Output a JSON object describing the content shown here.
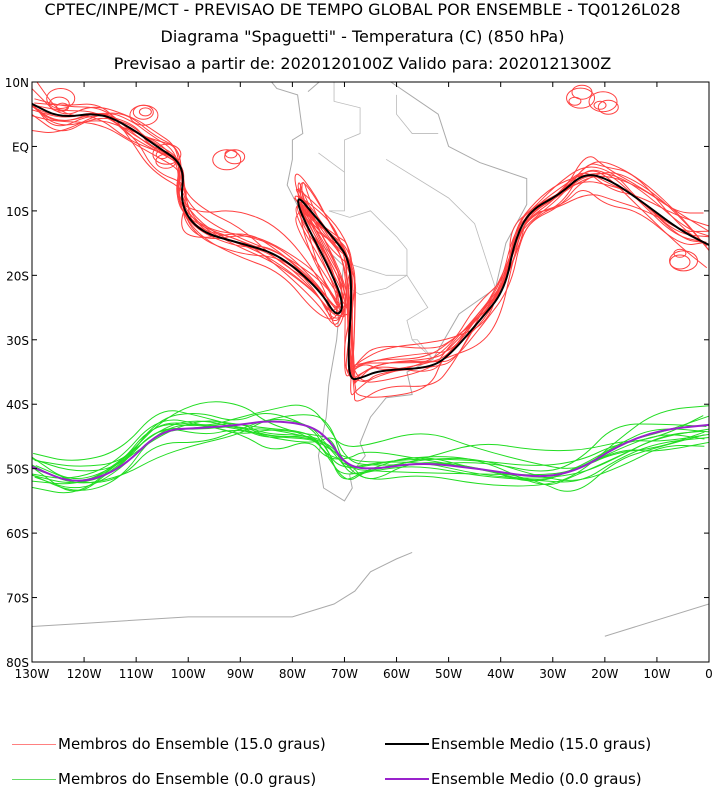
{
  "title": {
    "line1": "CPTEC/INPE/MCT - PREVISAO DE TEMPO GLOBAL POR ENSEMBLE - TQ0126L028",
    "line2": "Diagrama \"Spaguetti\" - Temperatura (C) (850 hPa)",
    "line3": "Previsao a partir de: 2020120100Z  Valido para: 2020121300Z"
  },
  "legend": [
    {
      "label": "Membros do Ensemble (15.0 graus)",
      "color": "#ff4040"
    },
    {
      "label": "Ensemble Medio (15.0 graus)",
      "color": "#000000"
    },
    {
      "label": "Membros do Ensemble (0.0 graus)",
      "color": "#22dd22"
    },
    {
      "label": "Ensemble Medio (0.0 graus)",
      "color": "#9922cc"
    }
  ],
  "chart_data": {
    "type": "line",
    "title": "Diagrama \"Spaguetti\" - Temperatura (C) (850 hPa)",
    "xlim": [
      -130,
      0
    ],
    "ylim": [
      -80,
      10
    ],
    "x_ticks": [
      "130W",
      "120W",
      "110W",
      "100W",
      "90W",
      "80W",
      "70W",
      "60W",
      "50W",
      "40W",
      "30W",
      "20W",
      "10W",
      "0"
    ],
    "y_ticks": [
      "10N",
      "EQ",
      "10S",
      "20S",
      "30S",
      "40S",
      "50S",
      "60S",
      "70S",
      "80S"
    ],
    "series": [
      {
        "name": "Ensemble Medio (15.0 graus)",
        "color": "#000000",
        "points": [
          [
            -130,
            6.6
          ],
          [
            -124.6,
            4.4
          ],
          [
            -117,
            5.3
          ],
          [
            -111,
            2.9
          ],
          [
            -106.4,
            0.2
          ],
          [
            -100.6,
            -2.9
          ],
          [
            -101.6,
            -9.1
          ],
          [
            -97.8,
            -13.3
          ],
          [
            -90,
            -15
          ],
          [
            -82.4,
            -16.8
          ],
          [
            -74.7,
            -22.3
          ],
          [
            -71.5,
            -26.6
          ],
          [
            -70,
            -24.6
          ],
          [
            -72.8,
            -19
          ],
          [
            -78.6,
            -10.2
          ],
          [
            -79.1,
            -7.5
          ],
          [
            -76,
            -10.5
          ],
          [
            -71.8,
            -14.5
          ],
          [
            -69,
            -17.6
          ],
          [
            -68.6,
            -23.8
          ],
          [
            -69.3,
            -31.6
          ],
          [
            -69,
            -36.2
          ],
          [
            -67,
            -36
          ],
          [
            -63.2,
            -34.7
          ],
          [
            -53.6,
            -34.4
          ],
          [
            -49.8,
            -32.4
          ],
          [
            -44,
            -27
          ],
          [
            -39.2,
            -22.3
          ],
          [
            -37.3,
            -14.5
          ],
          [
            -34.4,
            -9.9
          ],
          [
            -28.7,
            -7.5
          ],
          [
            -23.9,
            -4
          ],
          [
            -19,
            -5.2
          ],
          [
            -13.3,
            -8.3
          ],
          [
            -5.6,
            -13
          ],
          [
            0,
            -15.3
          ]
        ]
      },
      {
        "name": "Ensemble Medio (0.0 graus)",
        "color": "#9922cc",
        "points": [
          [
            -130,
            -49.7
          ],
          [
            -121.7,
            -52.5
          ],
          [
            -113,
            -50.2
          ],
          [
            -105.4,
            -44
          ],
          [
            -97.8,
            -43.7
          ],
          [
            -90,
            -43.2
          ],
          [
            -84.3,
            -42.5
          ],
          [
            -76.6,
            -43.2
          ],
          [
            -72.8,
            -45.6
          ],
          [
            -69.9,
            -49.4
          ],
          [
            -65.1,
            -50.2
          ],
          [
            -55.5,
            -49
          ],
          [
            -44,
            -50
          ],
          [
            -32.5,
            -51.5
          ],
          [
            -24.8,
            -50.2
          ],
          [
            -17.2,
            -46.3
          ],
          [
            -9.5,
            -44
          ],
          [
            0,
            -43.2
          ]
        ]
      }
    ]
  }
}
